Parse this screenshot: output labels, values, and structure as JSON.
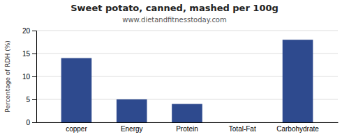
{
  "chart_data": {
    "type": "bar",
    "title": "Sweet potato, canned, mashed per 100g",
    "subtitle": "www.dietandfitnesstoday.com",
    "categories": [
      "copper",
      "Energy",
      "Protein",
      "Total-Fat",
      "Carbohydrate"
    ],
    "values": [
      14,
      5,
      4,
      0,
      18
    ],
    "color": "#2e4a8e",
    "ylabel": "Percentage of RDH (%)",
    "ylim": [
      0,
      20
    ],
    "yticks": [
      0,
      5,
      10,
      15,
      20
    ],
    "grid": true
  }
}
